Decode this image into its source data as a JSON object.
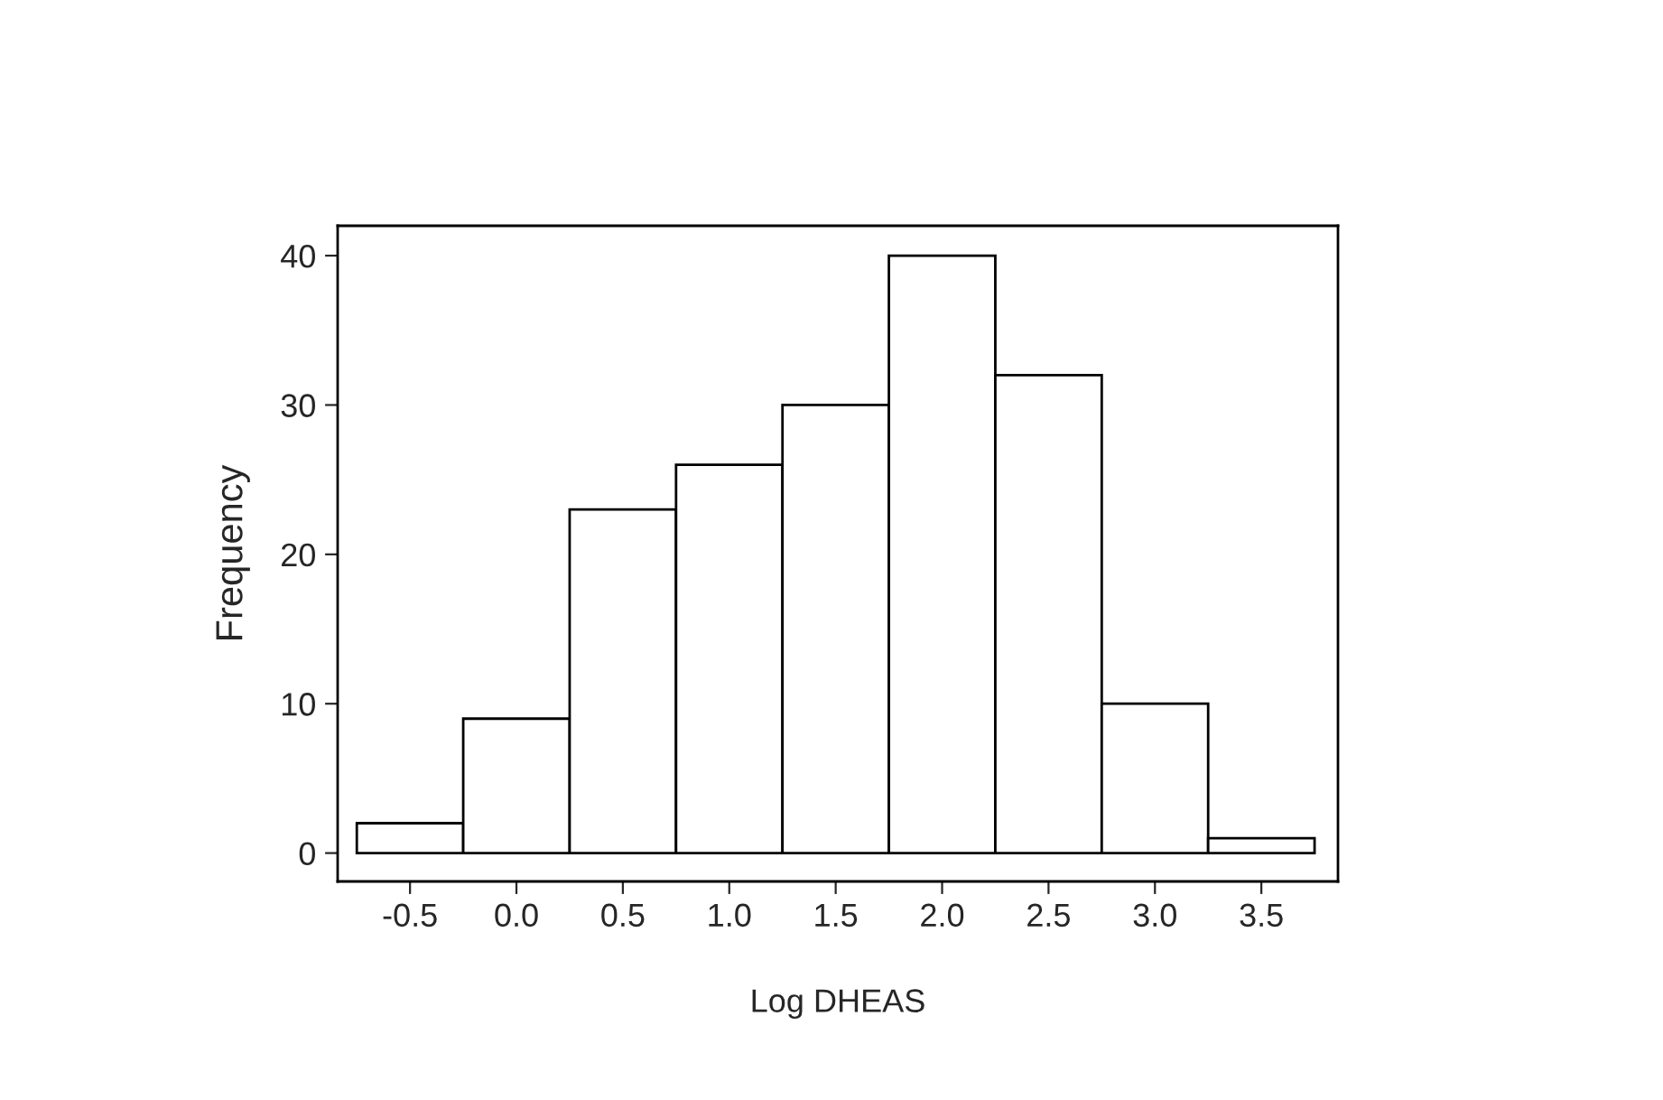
{
  "chart_data": {
    "type": "histogram",
    "xlabel": "Log DHEAS",
    "ylabel": "Frequency",
    "bins": [
      -0.75,
      -0.25,
      0.25,
      0.75,
      1.25,
      1.75,
      2.25,
      2.75,
      3.25,
      3.75
    ],
    "values": [
      2,
      9,
      23,
      26,
      30,
      40,
      32,
      10,
      1
    ],
    "color": "#ffffff",
    "xlim": [
      -0.84,
      3.86
    ],
    "ylim": [
      -1.9,
      42
    ],
    "xticks": [
      -0.5,
      {
        "value": 0,
        "label": "0.0"
      },
      0.5,
      {
        "value": 1,
        "label": "1.0"
      },
      1.5,
      {
        "value": 2,
        "label": "2.0"
      },
      2.5,
      {
        "value": 3,
        "label": "3.0"
      },
      3.5
    ],
    "yticks": [
      0,
      10,
      20,
      30,
      40
    ],
    "grid": false
  }
}
